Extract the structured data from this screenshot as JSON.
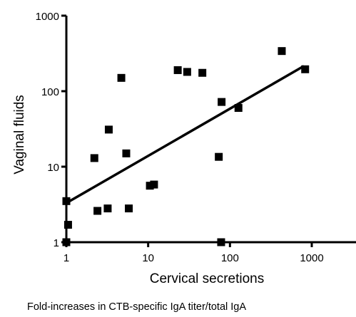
{
  "chart_data": {
    "type": "scatter",
    "x_scale": "log",
    "y_scale": "log",
    "xlabel": "Cervical secretions",
    "ylabel": "Vaginal fluids",
    "caption": "Fold-increases in CTB-specific IgA titer/total IgA",
    "xlim": [
      1,
      1000
    ],
    "ylim": [
      1,
      1000
    ],
    "x_ticks": [
      {
        "value": 1,
        "label": "1"
      },
      {
        "value": 10,
        "label": "10"
      },
      {
        "value": 100,
        "label": "100"
      },
      {
        "value": 1000,
        "label": "1000"
      }
    ],
    "y_ticks": [
      {
        "value": 1,
        "label": "1"
      },
      {
        "value": 10,
        "label": "10"
      },
      {
        "value": 100,
        "label": "100"
      },
      {
        "value": 1000,
        "label": "1000"
      }
    ],
    "points": [
      {
        "x": 1.0,
        "y": 3.5
      },
      {
        "x": 1.0,
        "y": 1.0
      },
      {
        "x": 1.05,
        "y": 1.7
      },
      {
        "x": 2.2,
        "y": 13
      },
      {
        "x": 2.4,
        "y": 2.6
      },
      {
        "x": 3.2,
        "y": 2.8
      },
      {
        "x": 3.3,
        "y": 31
      },
      {
        "x": 4.7,
        "y": 150
      },
      {
        "x": 5.4,
        "y": 15
      },
      {
        "x": 5.8,
        "y": 2.8
      },
      {
        "x": 10.5,
        "y": 5.6
      },
      {
        "x": 11.8,
        "y": 5.8
      },
      {
        "x": 23,
        "y": 190
      },
      {
        "x": 30,
        "y": 180
      },
      {
        "x": 46,
        "y": 175
      },
      {
        "x": 73,
        "y": 13.5
      },
      {
        "x": 79,
        "y": 72
      },
      {
        "x": 78,
        "y": 1.0
      },
      {
        "x": 127,
        "y": 60
      },
      {
        "x": 430,
        "y": 340
      },
      {
        "x": 830,
        "y": 195
      }
    ],
    "fit_line": {
      "x": [
        1,
        800
      ],
      "y": [
        3.3,
        215
      ]
    },
    "marker": "square",
    "color": "#000000"
  }
}
